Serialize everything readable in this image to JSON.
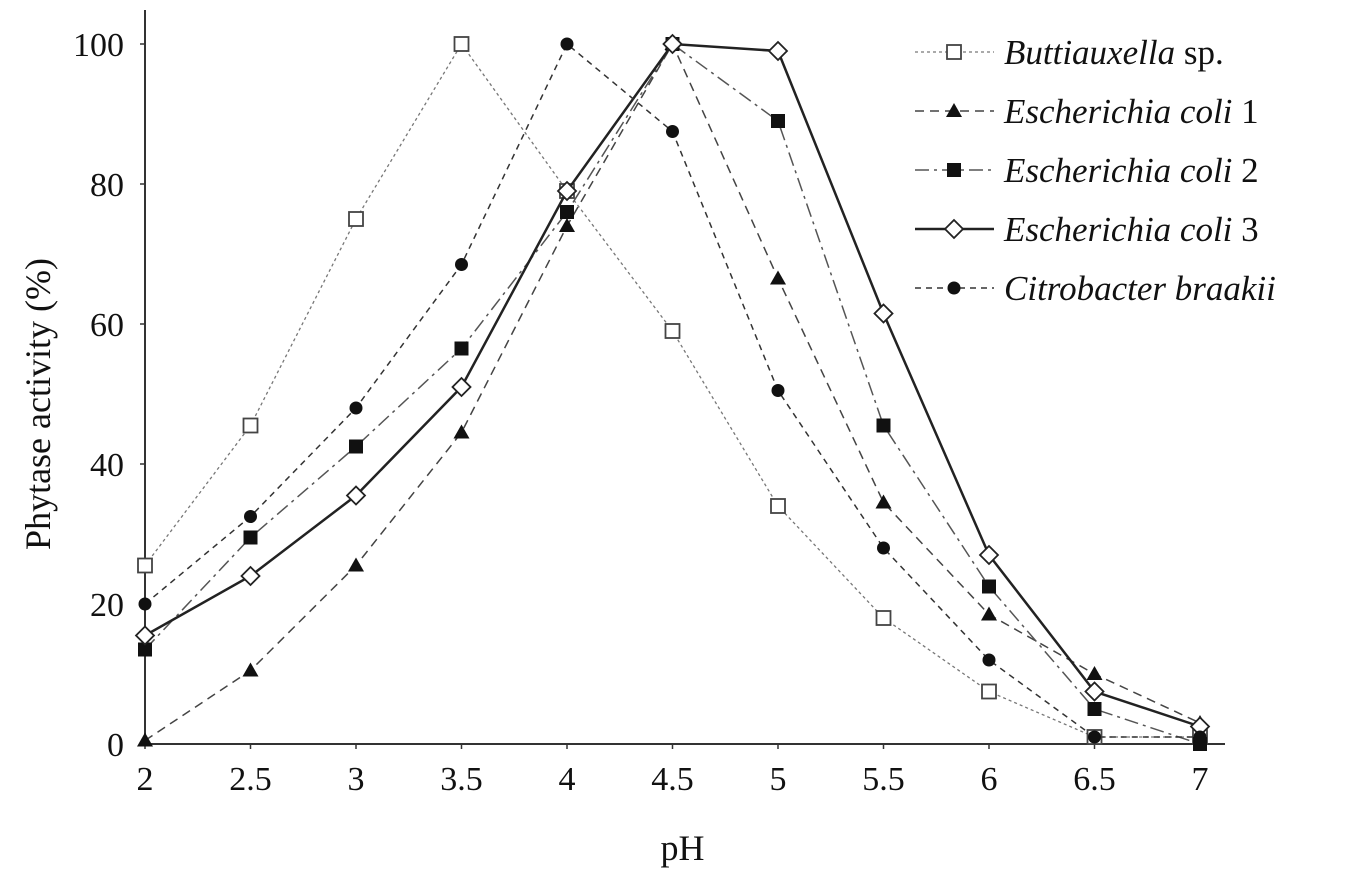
{
  "chart_data": {
    "type": "line",
    "xlabel": "pH",
    "ylabel": "Phytase activity (%)",
    "xlim": [
      2,
      7
    ],
    "ylim": [
      0,
      100
    ],
    "x": [
      2,
      2.5,
      3,
      3.5,
      4,
      4.5,
      5,
      5.5,
      6,
      6.5,
      7
    ],
    "x_tick_labels": [
      "2",
      "2.5",
      "3",
      "3.5",
      "4",
      "4.5",
      "5",
      "5.5",
      "6",
      "6.5",
      "7"
    ],
    "y_tick_labels": [
      "0",
      "20",
      "40",
      "60",
      "80",
      "100"
    ],
    "y_ticks": [
      0,
      20,
      40,
      60,
      80,
      100
    ],
    "grid": false,
    "legend_position": "top-right",
    "series": [
      {
        "name": "Buttiauxella",
        "name_suffix": " sp.",
        "marker": "open-square",
        "line": "dotted-thin",
        "color": "#777777",
        "values": [
          25.5,
          45.5,
          75,
          100,
          79,
          59,
          34,
          18,
          7.5,
          1,
          1
        ]
      },
      {
        "name": "Escherichia coli",
        "name_suffix": " 1",
        "marker": "filled-triangle",
        "line": "long-dash",
        "color": "#444444",
        "values": [
          0.5,
          10.5,
          25.5,
          44.5,
          74,
          100,
          66.5,
          34.5,
          18.5,
          10,
          3
        ]
      },
      {
        "name": "Escherichia coli",
        "name_suffix": " 2",
        "marker": "filled-square",
        "line": "dash-dot",
        "color": "#555555",
        "values": [
          13.5,
          29.5,
          42.5,
          56.5,
          76,
          100,
          89,
          45.5,
          22.5,
          5,
          0
        ]
      },
      {
        "name": "Escherichia coli",
        "name_suffix": " 3",
        "marker": "open-diamond",
        "line": "solid",
        "color": "#222222",
        "values": [
          15.5,
          24,
          35.5,
          51,
          79,
          100,
          99,
          61.5,
          27,
          7.5,
          2.5
        ]
      },
      {
        "name": "Citrobacter braakii",
        "name_suffix": "",
        "marker": "filled-circle",
        "line": "short-dash",
        "color": "#333333",
        "values": [
          20,
          32.5,
          48,
          68.5,
          100,
          87.5,
          50.5,
          28,
          12,
          1,
          1
        ]
      }
    ]
  }
}
